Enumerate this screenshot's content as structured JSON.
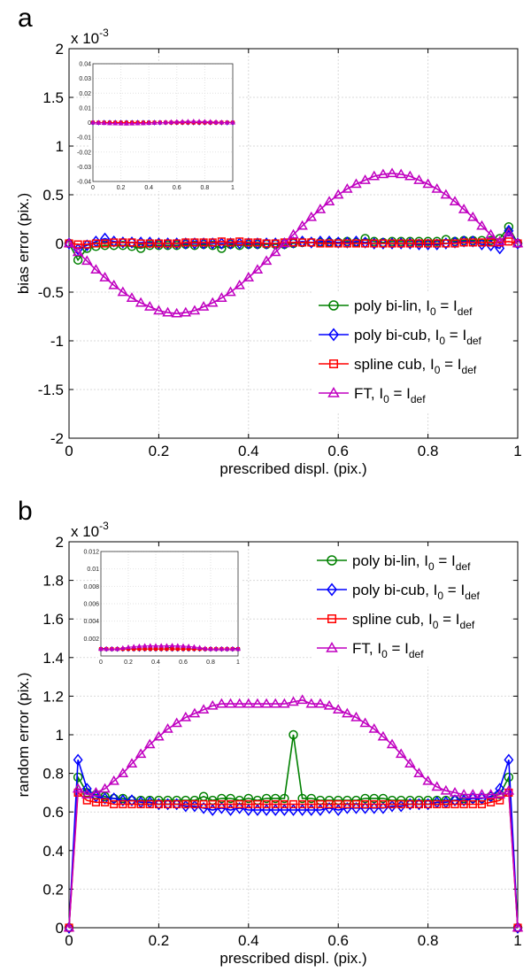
{
  "chart_data": [
    {
      "panel_label": "a",
      "type": "line",
      "xlabel": "prescribed displ. (pix.)",
      "ylabel": "bias error (pix.)",
      "y_exponent_label": "x 10",
      "y_exponent_power": "-3",
      "xlim": [
        0,
        1
      ],
      "ylim": [
        -2,
        2
      ],
      "xticks": [
        "0",
        "0.2",
        "0.4",
        "0.6",
        "0.8",
        "1"
      ],
      "yticks": [
        "-2",
        "-1.5",
        "-1",
        "-0.5",
        "0",
        "0.5",
        "1",
        "1.5",
        "2"
      ],
      "grid": true,
      "legend_position": "bottom-right",
      "series": [
        {
          "key": "poly_bilin",
          "legend": {
            "name": "poly bi-lin, I",
            "sub1": "0",
            "mid": " = I",
            "sub2": "def"
          },
          "color": "#008000",
          "marker": "circle",
          "x": [
            0,
            0.02,
            0.04,
            0.06,
            0.08,
            0.1,
            0.12,
            0.14,
            0.16,
            0.18,
            0.2,
            0.22,
            0.24,
            0.26,
            0.28,
            0.3,
            0.32,
            0.34,
            0.36,
            0.38,
            0.4,
            0.42,
            0.44,
            0.46,
            0.48,
            0.5,
            0.52,
            0.54,
            0.56,
            0.58,
            0.6,
            0.62,
            0.64,
            0.66,
            0.68,
            0.7,
            0.72,
            0.74,
            0.76,
            0.78,
            0.8,
            0.82,
            0.84,
            0.86,
            0.88,
            0.9,
            0.92,
            0.94,
            0.96,
            0.98,
            1
          ],
          "y": [
            0,
            -0.17,
            -0.05,
            -0.03,
            -0.02,
            -0.02,
            -0.02,
            -0.03,
            -0.05,
            -0.02,
            -0.02,
            -0.02,
            -0.02,
            -0.01,
            -0.02,
            -0.01,
            -0.02,
            -0.05,
            -0.01,
            -0.02,
            -0.01,
            -0.01,
            -0.01,
            -0.01,
            -0.01,
            0,
            0.01,
            0.01,
            0.01,
            0.01,
            0.01,
            0.02,
            0.01,
            0.05,
            0.02,
            0.01,
            0.02,
            0.02,
            0.02,
            0.02,
            0.02,
            0.02,
            0.04,
            0.02,
            0.03,
            0.03,
            0.03,
            0.03,
            0.05,
            0.17,
            0
          ]
        },
        {
          "key": "poly_bicub",
          "legend": {
            "name": "poly bi-cub, I",
            "sub1": "0",
            "mid": " = I",
            "sub2": "def"
          },
          "color": "#0000ff",
          "marker": "diamond",
          "x": [
            0,
            0.02,
            0.04,
            0.06,
            0.08,
            0.1,
            0.12,
            0.14,
            0.16,
            0.18,
            0.2,
            0.22,
            0.24,
            0.26,
            0.28,
            0.3,
            0.32,
            0.34,
            0.36,
            0.38,
            0.4,
            0.42,
            0.44,
            0.46,
            0.48,
            0.5,
            0.52,
            0.54,
            0.56,
            0.58,
            0.6,
            0.62,
            0.64,
            0.66,
            0.68,
            0.7,
            0.72,
            0.74,
            0.76,
            0.78,
            0.8,
            0.82,
            0.84,
            0.86,
            0.88,
            0.9,
            0.92,
            0.94,
            0.96,
            0.98,
            1
          ],
          "y": [
            0,
            -0.06,
            -0.02,
            0.02,
            0.05,
            0.02,
            0.01,
            0.01,
            0.01,
            0.01,
            0,
            0,
            0,
            0,
            0,
            0,
            0,
            0,
            0,
            0,
            0,
            0,
            0,
            0,
            0,
            0.01,
            0.02,
            0.01,
            0.02,
            0.02,
            0.01,
            0.01,
            0.02,
            0.01,
            0,
            0,
            0,
            0,
            0,
            -0.01,
            -0.01,
            -0.01,
            0,
            0.01,
            0.02,
            0.02,
            -0.01,
            -0.02,
            -0.05,
            0.13,
            0
          ]
        },
        {
          "key": "spline_cub",
          "legend": {
            "name": "spline cub, I",
            "sub1": "0",
            "mid": " = I",
            "sub2": "def"
          },
          "color": "#ff0000",
          "marker": "square",
          "x": [
            0,
            0.02,
            0.04,
            0.06,
            0.08,
            0.1,
            0.12,
            0.14,
            0.16,
            0.18,
            0.2,
            0.22,
            0.24,
            0.26,
            0.28,
            0.3,
            0.32,
            0.34,
            0.36,
            0.38,
            0.4,
            0.42,
            0.44,
            0.46,
            0.48,
            0.5,
            0.52,
            0.54,
            0.56,
            0.58,
            0.6,
            0.62,
            0.64,
            0.66,
            0.68,
            0.7,
            0.72,
            0.74,
            0.76,
            0.78,
            0.8,
            0.82,
            0.84,
            0.86,
            0.88,
            0.9,
            0.92,
            0.94,
            0.96,
            0.98,
            1
          ],
          "y": [
            0,
            -0.01,
            -0.01,
            0,
            0,
            0.01,
            0.01,
            0.01,
            0,
            0,
            0,
            0,
            0,
            0.01,
            0.01,
            0.01,
            0.01,
            0.02,
            0.01,
            0.02,
            0.01,
            0.01,
            0,
            0,
            0.01,
            0.01,
            0.01,
            0.01,
            0,
            0,
            0,
            0,
            0,
            0,
            0,
            0,
            0,
            0,
            0,
            0,
            0,
            0,
            0,
            0,
            0.01,
            0.01,
            0.01,
            0.01,
            0.01,
            0.02,
            0
          ]
        },
        {
          "key": "ft",
          "legend": {
            "name": "FT, I",
            "sub1": "0",
            "mid": " = I",
            "sub2": "def"
          },
          "color": "#c000c0",
          "marker": "triangle",
          "x": [
            0,
            0.02,
            0.04,
            0.06,
            0.08,
            0.1,
            0.12,
            0.14,
            0.16,
            0.18,
            0.2,
            0.22,
            0.24,
            0.26,
            0.28,
            0.3,
            0.32,
            0.34,
            0.36,
            0.38,
            0.4,
            0.42,
            0.44,
            0.46,
            0.48,
            0.5,
            0.52,
            0.54,
            0.56,
            0.58,
            0.6,
            0.62,
            0.64,
            0.66,
            0.68,
            0.7,
            0.72,
            0.74,
            0.76,
            0.78,
            0.8,
            0.82,
            0.84,
            0.86,
            0.88,
            0.9,
            0.92,
            0.94,
            0.96,
            0.98,
            1
          ],
          "y": [
            0,
            -0.09,
            -0.18,
            -0.27,
            -0.35,
            -0.43,
            -0.5,
            -0.56,
            -0.61,
            -0.65,
            -0.69,
            -0.71,
            -0.72,
            -0.71,
            -0.69,
            -0.65,
            -0.61,
            -0.56,
            -0.5,
            -0.43,
            -0.35,
            -0.27,
            -0.18,
            -0.09,
            0,
            0.09,
            0.18,
            0.27,
            0.35,
            0.43,
            0.5,
            0.56,
            0.61,
            0.65,
            0.69,
            0.71,
            0.72,
            0.71,
            0.69,
            0.65,
            0.61,
            0.56,
            0.5,
            0.43,
            0.35,
            0.27,
            0.18,
            0.09,
            0.02,
            0.11,
            0
          ]
        }
      ],
      "inset": {
        "xlim": [
          0,
          1
        ],
        "ylim": [
          -0.04,
          0.04
        ],
        "xticks": [
          "0",
          "0.2",
          "0.4",
          "0.6",
          "0.8",
          "1"
        ],
        "yticks": [
          "0.04",
          "0.03",
          "0.02",
          "0.01",
          "0",
          "-0.01",
          "-0.02",
          "-0.03",
          "-0.04"
        ]
      }
    },
    {
      "panel_label": "b",
      "type": "line",
      "xlabel": "prescribed displ. (pix.)",
      "ylabel": "random error (pix.)",
      "y_exponent_label": "x 10",
      "y_exponent_power": "-3",
      "xlim": [
        0,
        1
      ],
      "ylim": [
        0,
        2
      ],
      "xticks": [
        "0",
        "0.2",
        "0.4",
        "0.6",
        "0.8",
        "1"
      ],
      "yticks": [
        "0",
        "0.2",
        "0.4",
        "0.6",
        "0.8",
        "1",
        "1.2",
        "1.4",
        "1.6",
        "1.8",
        "2"
      ],
      "grid": true,
      "legend_position": "top-right",
      "series": [
        {
          "key": "poly_bilin",
          "legend": {
            "name": "poly bi-lin, I",
            "sub1": "0",
            "mid": " = I",
            "sub2": "def"
          },
          "color": "#008000",
          "marker": "circle",
          "x": [
            0,
            0.02,
            0.04,
            0.06,
            0.08,
            0.1,
            0.12,
            0.14,
            0.16,
            0.18,
            0.2,
            0.22,
            0.24,
            0.26,
            0.28,
            0.3,
            0.32,
            0.34,
            0.36,
            0.38,
            0.4,
            0.42,
            0.44,
            0.46,
            0.48,
            0.5,
            0.52,
            0.54,
            0.56,
            0.58,
            0.6,
            0.62,
            0.64,
            0.66,
            0.68,
            0.7,
            0.72,
            0.74,
            0.76,
            0.78,
            0.8,
            0.82,
            0.84,
            0.86,
            0.88,
            0.9,
            0.92,
            0.94,
            0.96,
            0.98,
            1
          ],
          "y": [
            0,
            0.78,
            0.7,
            0.69,
            0.68,
            0.67,
            0.67,
            0.66,
            0.66,
            0.66,
            0.66,
            0.66,
            0.66,
            0.66,
            0.66,
            0.68,
            0.66,
            0.67,
            0.67,
            0.66,
            0.67,
            0.66,
            0.67,
            0.67,
            0.67,
            1.0,
            0.67,
            0.67,
            0.66,
            0.66,
            0.66,
            0.66,
            0.66,
            0.67,
            0.67,
            0.67,
            0.66,
            0.66,
            0.66,
            0.66,
            0.66,
            0.66,
            0.66,
            0.66,
            0.67,
            0.67,
            0.67,
            0.68,
            0.69,
            0.78,
            0
          ]
        },
        {
          "key": "poly_bicub",
          "legend": {
            "name": "poly bi-cub, I",
            "sub1": "0",
            "mid": " = I",
            "sub2": "def"
          },
          "color": "#0000ff",
          "marker": "diamond",
          "x": [
            0,
            0.02,
            0.04,
            0.06,
            0.08,
            0.1,
            0.12,
            0.14,
            0.16,
            0.18,
            0.2,
            0.22,
            0.24,
            0.26,
            0.28,
            0.3,
            0.32,
            0.34,
            0.36,
            0.38,
            0.4,
            0.42,
            0.44,
            0.46,
            0.48,
            0.5,
            0.52,
            0.54,
            0.56,
            0.58,
            0.6,
            0.62,
            0.64,
            0.66,
            0.68,
            0.7,
            0.72,
            0.74,
            0.76,
            0.78,
            0.8,
            0.82,
            0.84,
            0.86,
            0.88,
            0.9,
            0.92,
            0.94,
            0.96,
            0.98,
            1
          ],
          "y": [
            0,
            0.87,
            0.72,
            0.68,
            0.67,
            0.67,
            0.66,
            0.66,
            0.65,
            0.65,
            0.64,
            0.64,
            0.64,
            0.63,
            0.63,
            0.62,
            0.61,
            0.62,
            0.61,
            0.62,
            0.61,
            0.61,
            0.61,
            0.61,
            0.61,
            0.61,
            0.61,
            0.61,
            0.61,
            0.62,
            0.61,
            0.62,
            0.62,
            0.62,
            0.62,
            0.62,
            0.63,
            0.63,
            0.64,
            0.64,
            0.64,
            0.65,
            0.65,
            0.66,
            0.66,
            0.67,
            0.67,
            0.68,
            0.72,
            0.87,
            0
          ]
        },
        {
          "key": "spline_cub",
          "legend": {
            "name": "spline cub, I",
            "sub1": "0",
            "mid": " = I",
            "sub2": "def"
          },
          "color": "#ff0000",
          "marker": "square",
          "x": [
            0,
            0.02,
            0.04,
            0.06,
            0.08,
            0.1,
            0.12,
            0.14,
            0.16,
            0.18,
            0.2,
            0.22,
            0.24,
            0.26,
            0.28,
            0.3,
            0.32,
            0.34,
            0.36,
            0.38,
            0.4,
            0.42,
            0.44,
            0.46,
            0.48,
            0.5,
            0.52,
            0.54,
            0.56,
            0.58,
            0.6,
            0.62,
            0.64,
            0.66,
            0.68,
            0.7,
            0.72,
            0.74,
            0.76,
            0.78,
            0.8,
            0.82,
            0.84,
            0.86,
            0.88,
            0.9,
            0.92,
            0.94,
            0.96,
            0.98,
            1
          ],
          "y": [
            0,
            0.7,
            0.66,
            0.65,
            0.65,
            0.64,
            0.64,
            0.64,
            0.64,
            0.64,
            0.64,
            0.64,
            0.64,
            0.64,
            0.64,
            0.64,
            0.64,
            0.64,
            0.64,
            0.64,
            0.64,
            0.64,
            0.64,
            0.64,
            0.64,
            0.64,
            0.64,
            0.64,
            0.64,
            0.64,
            0.64,
            0.64,
            0.64,
            0.64,
            0.64,
            0.64,
            0.64,
            0.64,
            0.64,
            0.64,
            0.64,
            0.64,
            0.64,
            0.64,
            0.64,
            0.64,
            0.64,
            0.65,
            0.66,
            0.7,
            0
          ]
        },
        {
          "key": "ft",
          "legend": {
            "name": "FT, I",
            "sub1": "0",
            "mid": " = I",
            "sub2": "def"
          },
          "color": "#c000c0",
          "marker": "triangle",
          "x": [
            0,
            0.02,
            0.04,
            0.06,
            0.08,
            0.1,
            0.12,
            0.14,
            0.16,
            0.18,
            0.2,
            0.22,
            0.24,
            0.26,
            0.28,
            0.3,
            0.32,
            0.34,
            0.36,
            0.38,
            0.4,
            0.42,
            0.44,
            0.46,
            0.48,
            0.5,
            0.52,
            0.54,
            0.56,
            0.58,
            0.6,
            0.62,
            0.64,
            0.66,
            0.68,
            0.7,
            0.72,
            0.74,
            0.76,
            0.78,
            0.8,
            0.82,
            0.84,
            0.86,
            0.88,
            0.9,
            0.92,
            0.94,
            0.96,
            0.98,
            1
          ],
          "y": [
            0,
            0.72,
            0.69,
            0.7,
            0.72,
            0.76,
            0.8,
            0.85,
            0.9,
            0.95,
            0.99,
            1.03,
            1.06,
            1.09,
            1.11,
            1.13,
            1.15,
            1.16,
            1.16,
            1.16,
            1.16,
            1.16,
            1.16,
            1.16,
            1.16,
            1.17,
            1.18,
            1.16,
            1.16,
            1.15,
            1.13,
            1.11,
            1.09,
            1.06,
            1.03,
            0.99,
            0.95,
            0.9,
            0.85,
            0.8,
            0.76,
            0.73,
            0.71,
            0.7,
            0.69,
            0.69,
            0.69,
            0.69,
            0.69,
            0.71,
            0
          ]
        }
      ],
      "inset": {
        "xlim": [
          0,
          1
        ],
        "ylim": [
          0,
          0.012
        ],
        "xticks": [
          "0",
          "0.2",
          "0.4",
          "0.6",
          "0.8",
          "1"
        ],
        "yticks": [
          "0.012",
          "0.01",
          "0.008",
          "0.006",
          "0.004",
          "0.002"
        ]
      }
    }
  ]
}
